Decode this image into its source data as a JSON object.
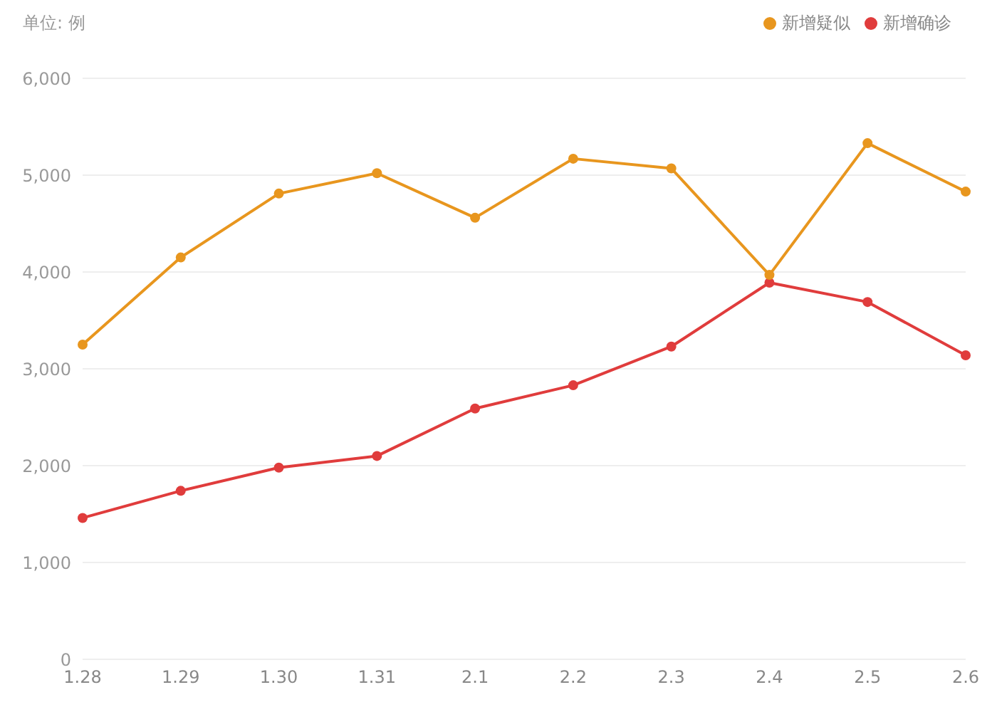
{
  "chart_data": {
    "type": "line",
    "ylabel": "单位: 例",
    "categories": [
      "1.28",
      "1.29",
      "1.30",
      "1.31",
      "2.1",
      "2.2",
      "2.3",
      "2.4",
      "2.5",
      "2.6"
    ],
    "series": [
      {
        "name": "新增确诊",
        "color": "#e03c3c",
        "values": [
          1460,
          1740,
          1980,
          2100,
          2590,
          2830,
          3230,
          3890,
          3690,
          3140
        ]
      },
      {
        "name": "新增疑似",
        "color": "#e8961e",
        "values": [
          3250,
          4150,
          4810,
          5020,
          4560,
          5170,
          5070,
          3970,
          5330,
          4830
        ]
      }
    ],
    "ylim": [
      0,
      6000
    ],
    "yticks": [
      0,
      {
        "value": 1000,
        "label": "1,000"
      },
      {
        "value": 2000,
        "label": "2,000"
      },
      {
        "value": 3000,
        "label": "3,000"
      },
      {
        "value": 4000,
        "label": "4,000"
      },
      {
        "value": 5000,
        "label": "5,000"
      },
      {
        "value": 6000,
        "label": "6,000"
      }
    ],
    "grid": "y",
    "legend": "top right",
    "marker": "circle",
    "line_style": "solid"
  }
}
